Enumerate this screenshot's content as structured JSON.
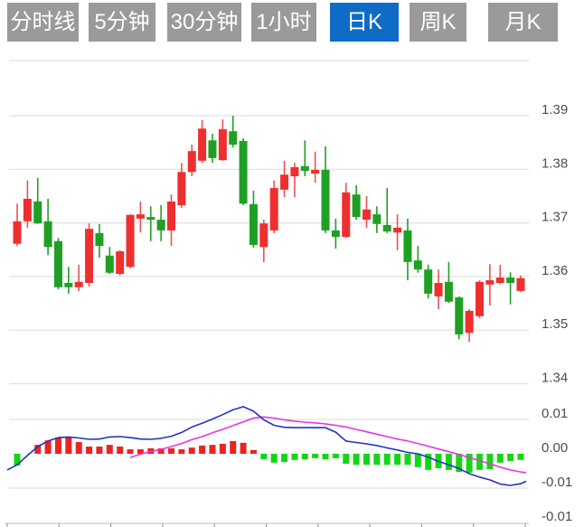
{
  "tabs": [
    {
      "label": "分时线",
      "active": false
    },
    {
      "label": "5分钟",
      "active": false
    },
    {
      "label": "30分钟",
      "active": false
    },
    {
      "label": "1小时",
      "active": false
    },
    {
      "label": "日K",
      "active": true
    },
    {
      "label": "周K",
      "active": false
    },
    {
      "label": "月K",
      "active": false
    }
  ],
  "colors": {
    "up": "#ee2f2f",
    "up_wick": "#ef5050",
    "down": "#1fa024",
    "down_wick": "#1fa024",
    "hist_up": "#ee2222",
    "hist_down": "#16d516",
    "dif_line": "#2233c4",
    "dea_line": "#ea35dd",
    "grid": "#e0e0e0",
    "zero_line": "#ececec",
    "axis_line": "#c6c6cc",
    "tick": "#9aa0a6",
    "label": "#4d4d4d",
    "tab_bg": "#9a9a9a",
    "tab_active_bg": "#0f6cc6",
    "tab_text": "#ffffff"
  },
  "chart_data": {
    "type": "candlestick+macd",
    "title": "",
    "price_axis_labels": [
      "1.39",
      "1.38",
      "1.37",
      "1.36",
      "1.35",
      "1.34"
    ],
    "price_axis_range": [
      1.34,
      1.4
    ],
    "macd_axis_labels": [
      "0.01",
      "0.00",
      "-0.01",
      "-0.01"
    ],
    "grid": true,
    "legend_position": "none",
    "candles_ohlc": [
      [
        1.3661,
        1.3736,
        1.3657,
        1.3703
      ],
      [
        1.3703,
        1.3779,
        1.3691,
        1.3745
      ],
      [
        1.374,
        1.3784,
        1.3698,
        1.3699
      ],
      [
        1.3703,
        1.3745,
        1.364,
        1.3655
      ],
      [
        1.3666,
        1.3672,
        1.3576,
        1.358
      ],
      [
        1.3588,
        1.3618,
        1.3568,
        1.358
      ],
      [
        1.358,
        1.3622,
        1.3573,
        1.359
      ],
      [
        1.3588,
        1.3699,
        1.3581,
        1.3689
      ],
      [
        1.3681,
        1.3698,
        1.3635,
        1.3657
      ],
      [
        1.3639,
        1.3655,
        1.3605,
        1.3607
      ],
      [
        1.3605,
        1.3649,
        1.3602,
        1.3647
      ],
      [
        1.3618,
        1.3716,
        1.3615,
        1.3715
      ],
      [
        1.3708,
        1.374,
        1.3682,
        1.3716
      ],
      [
        1.3711,
        1.3731,
        1.3666,
        1.3706
      ],
      [
        1.3706,
        1.3733,
        1.3666,
        1.3686
      ],
      [
        1.3686,
        1.3753,
        1.3657,
        1.374
      ],
      [
        1.3733,
        1.3812,
        1.3728,
        1.3795
      ],
      [
        1.3795,
        1.3846,
        1.3787,
        1.3834
      ],
      [
        1.3816,
        1.3892,
        1.3812,
        1.3876
      ],
      [
        1.3854,
        1.3866,
        1.3812,
        1.3821
      ],
      [
        1.3817,
        1.3893,
        1.3816,
        1.3875
      ],
      [
        1.3871,
        1.39,
        1.3841,
        1.3846
      ],
      [
        1.3853,
        1.3858,
        1.3733,
        1.3736
      ],
      [
        1.3735,
        1.376,
        1.3654,
        1.3659
      ],
      [
        1.3655,
        1.3706,
        1.3627,
        1.3699
      ],
      [
        1.3686,
        1.3779,
        1.3681,
        1.3765
      ],
      [
        1.3762,
        1.3816,
        1.3748,
        1.379
      ],
      [
        1.3787,
        1.3812,
        1.3748,
        1.3804
      ],
      [
        1.3806,
        1.3854,
        1.3787,
        1.3797
      ],
      [
        1.3792,
        1.3833,
        1.3775,
        1.3799
      ],
      [
        1.3799,
        1.3843,
        1.3681,
        1.3686
      ],
      [
        1.3686,
        1.3708,
        1.3652,
        1.3674
      ],
      [
        1.3674,
        1.3775,
        1.3672,
        1.3757
      ],
      [
        1.3753,
        1.377,
        1.3706,
        1.3711
      ],
      [
        1.3706,
        1.375,
        1.3691,
        1.3725
      ],
      [
        1.3716,
        1.3731,
        1.3681,
        1.3698
      ],
      [
        1.3696,
        1.3765,
        1.3681,
        1.3684
      ],
      [
        1.3682,
        1.3716,
        1.3649,
        1.3691
      ],
      [
        1.3686,
        1.3708,
        1.3593,
        1.3627
      ],
      [
        1.363,
        1.3657,
        1.3607,
        1.3613
      ],
      [
        1.3613,
        1.3622,
        1.3559,
        1.3568
      ],
      [
        1.3563,
        1.3613,
        1.3539,
        1.3588
      ],
      [
        1.359,
        1.3627,
        1.3551,
        1.3553
      ],
      [
        1.3561,
        1.3563,
        1.3483,
        1.3492
      ],
      [
        1.3495,
        1.3539,
        1.3478,
        1.3536
      ],
      [
        1.3526,
        1.3593,
        1.3522,
        1.359
      ],
      [
        1.3585,
        1.3623,
        1.3546,
        1.3593
      ],
      [
        1.3588,
        1.3622,
        1.3586,
        1.3598
      ],
      [
        1.3598,
        1.3608,
        1.3548,
        1.3588
      ],
      [
        1.3573,
        1.3602,
        1.3571,
        1.3597
      ]
    ],
    "macd": {
      "histogram": [
        -0.0034,
        0.0,
        0.0026,
        0.0039,
        0.0047,
        0.005,
        0.0034,
        0.0021,
        0.0021,
        0.0026,
        0.0021,
        0.0013,
        0.0013,
        0.0016,
        0.0016,
        0.0016,
        0.0013,
        0.0018,
        0.0024,
        0.0026,
        0.0029,
        0.0037,
        0.0032,
        0.0011,
        -0.0016,
        -0.0026,
        -0.0024,
        -0.0018,
        -0.0016,
        -0.0013,
        -0.0016,
        -0.0013,
        -0.0029,
        -0.0032,
        -0.0032,
        -0.0032,
        -0.0032,
        -0.0032,
        -0.0032,
        -0.0039,
        -0.0047,
        -0.0042,
        -0.0047,
        -0.0053,
        -0.0055,
        -0.0047,
        -0.0045,
        -0.0026,
        -0.0021,
        -0.0018
      ],
      "dif": [
        -0.0032,
        -0.0005,
        0.0021,
        0.0037,
        0.0047,
        0.0049,
        0.0046,
        0.0042,
        0.0043,
        0.0049,
        0.005,
        0.0047,
        0.0043,
        0.0042,
        0.0045,
        0.0051,
        0.0062,
        0.0078,
        0.0089,
        0.0101,
        0.0114,
        0.0128,
        0.0137,
        0.0124,
        0.0099,
        0.0083,
        0.0077,
        0.0076,
        0.0076,
        0.0076,
        0.0076,
        0.0063,
        0.0037,
        0.0033,
        0.0029,
        0.0024,
        0.0017,
        0.0011,
        0.0004,
        0.0,
        -0.001,
        -0.0022,
        -0.0032,
        -0.0043,
        -0.0058,
        -0.0068,
        -0.0076,
        -0.0088,
        -0.0092,
        -0.0087
      ],
      "dea": [
        null,
        null,
        null,
        null,
        null,
        null,
        null,
        null,
        null,
        null,
        null,
        -0.0011,
        -0.0001,
        0.0007,
        0.0013,
        0.0021,
        0.003,
        0.0041,
        0.005,
        0.0061,
        0.0071,
        0.0082,
        0.0093,
        0.0104,
        0.0107,
        0.0104,
        0.0099,
        0.0095,
        0.0092,
        0.009,
        0.0087,
        0.0083,
        0.0078,
        0.0071,
        0.0064,
        0.0057,
        0.005,
        0.0043,
        0.0037,
        0.003,
        0.0022,
        0.0014,
        0.0006,
        -0.0002,
        -0.0011,
        -0.002,
        -0.0029,
        -0.0039,
        -0.0047,
        -0.0053
      ],
      "dif_left_ext": -0.0047,
      "dif_right_ext": -0.008,
      "dea_right_ext": -0.0055
    }
  }
}
